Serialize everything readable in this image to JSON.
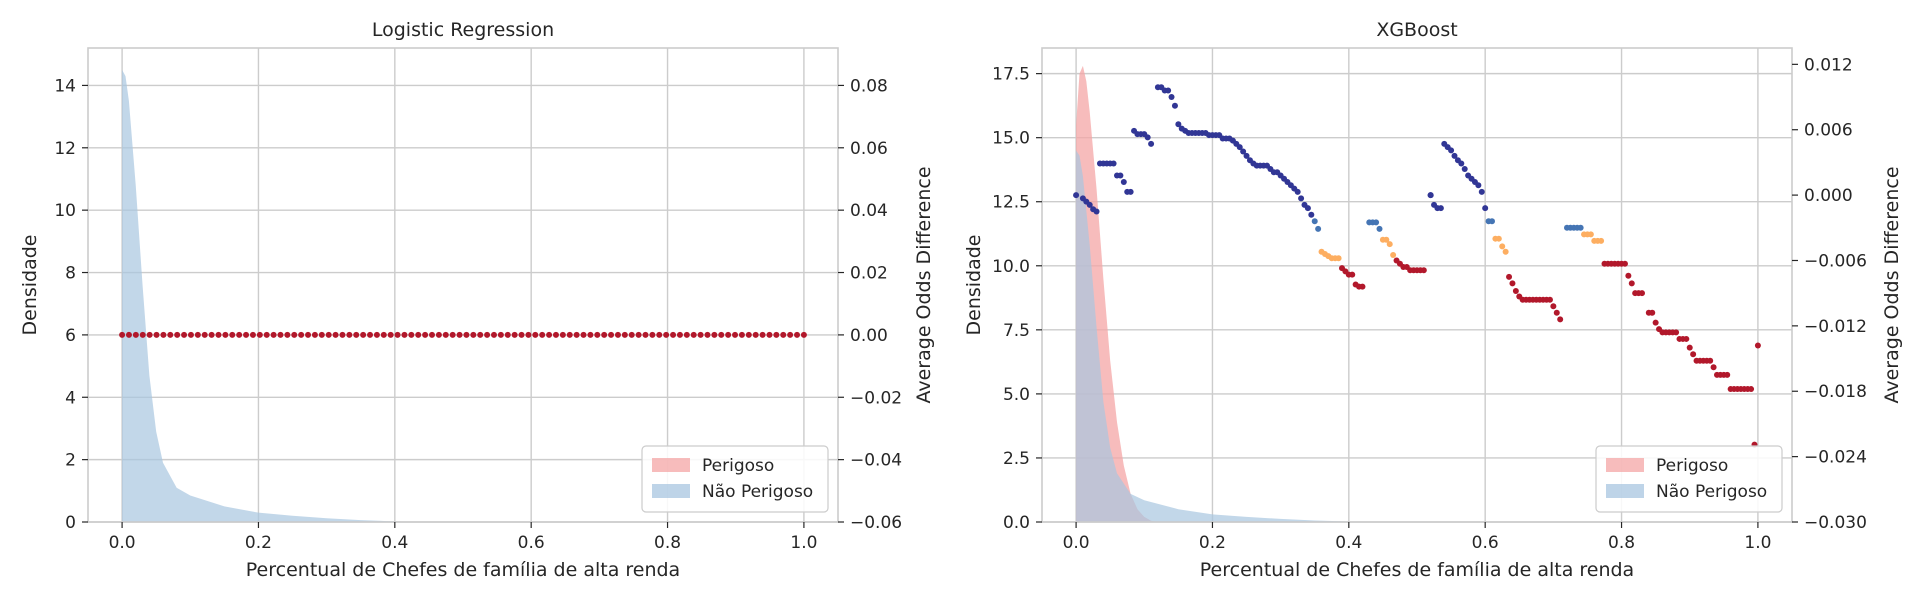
{
  "chart_data": [
    {
      "type": "area+scatter",
      "title": "Logistic Regression",
      "xlabel": "Percentual de Chefes de família de alta renda",
      "ylabel": "Densidade",
      "y2label": "Average Odds Difference",
      "xlim": [
        -0.05,
        1.05
      ],
      "ylim": [
        0,
        15.2
      ],
      "y2lim": [
        -0.06,
        0.092
      ],
      "xticks": [
        "0.0",
        "0.2",
        "0.4",
        "0.6",
        "0.8",
        "1.0"
      ],
      "yticks": [
        "0",
        "2",
        "4",
        "6",
        "8",
        "10",
        "12",
        "14"
      ],
      "y2ticks": [
        "0.08",
        "0.06",
        "0.04",
        "0.02",
        "0.00",
        "−0.02",
        "−0.04",
        "−0.06"
      ],
      "grid": true,
      "legend_position": "lower right",
      "legend": [
        "Perigoso",
        "Não Perigoso"
      ],
      "series": [
        {
          "name": "Perigoso",
          "kind": "density",
          "color": "#f4a6a6",
          "x": [],
          "y": []
        },
        {
          "name": "Não Perigoso",
          "kind": "density",
          "color": "#a8c6e0",
          "x": [
            0,
            0.005,
            0.01,
            0.02,
            0.03,
            0.04,
            0.05,
            0.06,
            0.08,
            0.1,
            0.15,
            0.2,
            0.25,
            0.3,
            0.35,
            0.4,
            0.45
          ],
          "y": [
            14.5,
            14.3,
            13.5,
            10.8,
            7.6,
            4.7,
            2.9,
            1.9,
            1.1,
            0.85,
            0.5,
            0.3,
            0.2,
            0.12,
            0.06,
            0.02,
            0
          ]
        }
      ],
      "odds_points": {
        "axis": "secondary",
        "x_start": 0.0,
        "x_end": 1.0,
        "count": 100,
        "y": [
          0.0
        ],
        "color": "#b2182b"
      }
    },
    {
      "type": "area+scatter",
      "title": "XGBoost",
      "xlabel": "Percentual de Chefes de família de alta renda",
      "ylabel": "Densidade",
      "y2label": "Average Odds Difference",
      "xlim": [
        -0.05,
        1.05
      ],
      "ylim": [
        0,
        18.5
      ],
      "y2lim": [
        -0.03,
        0.0135
      ],
      "xticks": [
        "0.0",
        "0.2",
        "0.4",
        "0.6",
        "0.8",
        "1.0"
      ],
      "yticks": [
        "0.0",
        "2.5",
        "5.0",
        "7.5",
        "10.0",
        "12.5",
        "15.0",
        "17.5"
      ],
      "y2ticks": [
        "0.012",
        "0.006",
        "0.000",
        "−0.006",
        "−0.012",
        "−0.018",
        "−0.024",
        "−0.030"
      ],
      "grid": true,
      "legend_position": "lower right",
      "legend": [
        "Perigoso",
        "Não Perigoso"
      ],
      "series": [
        {
          "name": "Perigoso",
          "kind": "density",
          "color": "#f4a6a6",
          "x": [
            0,
            0.005,
            0.01,
            0.015,
            0.02,
            0.03,
            0.04,
            0.05,
            0.06,
            0.07,
            0.08,
            0.09,
            0.1,
            0.11,
            0.12
          ],
          "y": [
            15.5,
            17.5,
            17.8,
            17.2,
            16.0,
            13.0,
            9.5,
            6.3,
            3.9,
            2.2,
            1.1,
            0.5,
            0.2,
            0.05,
            0
          ]
        },
        {
          "name": "Não Perigoso",
          "kind": "density",
          "color": "#a8c6e0",
          "x": [
            0,
            0.005,
            0.01,
            0.02,
            0.03,
            0.04,
            0.05,
            0.06,
            0.08,
            0.1,
            0.15,
            0.2,
            0.25,
            0.3,
            0.35,
            0.4,
            0.45
          ],
          "y": [
            14.5,
            14.3,
            13.5,
            10.8,
            7.6,
            4.7,
            2.9,
            1.9,
            1.1,
            0.85,
            0.5,
            0.3,
            0.2,
            0.12,
            0.06,
            0.02,
            0
          ]
        }
      ],
      "odds_points": {
        "axis": "secondary",
        "colormap": [
          "#313695",
          "#4575b4",
          "#fdae61",
          "#b2182b"
        ],
        "color_low": -0.002,
        "color_mid": -0.006,
        "points": [
          [
            0.0,
            0.0
          ],
          [
            0.01,
            -0.0003
          ],
          [
            0.015,
            -0.0006
          ],
          [
            0.02,
            -0.0009
          ],
          [
            0.025,
            -0.0013
          ],
          [
            0.03,
            -0.0015
          ],
          [
            0.035,
            0.0029
          ],
          [
            0.04,
            0.0029
          ],
          [
            0.045,
            0.0029
          ],
          [
            0.05,
            0.0029
          ],
          [
            0.055,
            0.0029
          ],
          [
            0.06,
            0.0018
          ],
          [
            0.065,
            0.0018
          ],
          [
            0.07,
            0.0012
          ],
          [
            0.075,
            0.0003
          ],
          [
            0.08,
            0.0003
          ],
          [
            0.085,
            0.0059
          ],
          [
            0.09,
            0.0056
          ],
          [
            0.095,
            0.0056
          ],
          [
            0.1,
            0.0056
          ],
          [
            0.105,
            0.0053
          ],
          [
            0.11,
            0.0047
          ],
          [
            0.12,
            0.0099
          ],
          [
            0.125,
            0.0099
          ],
          [
            0.13,
            0.0096
          ],
          [
            0.135,
            0.0096
          ],
          [
            0.14,
            0.009
          ],
          [
            0.145,
            0.0082
          ],
          [
            0.15,
            0.0065
          ],
          [
            0.155,
            0.0061
          ],
          [
            0.16,
            0.0059
          ],
          [
            0.165,
            0.0057
          ],
          [
            0.17,
            0.0057
          ],
          [
            0.175,
            0.0057
          ],
          [
            0.18,
            0.0057
          ],
          [
            0.185,
            0.0057
          ],
          [
            0.19,
            0.0057
          ],
          [
            0.195,
            0.0055
          ],
          [
            0.2,
            0.0055
          ],
          [
            0.205,
            0.0055
          ],
          [
            0.21,
            0.0055
          ],
          [
            0.215,
            0.0052
          ],
          [
            0.22,
            0.0052
          ],
          [
            0.225,
            0.0052
          ],
          [
            0.23,
            0.005
          ],
          [
            0.235,
            0.0047
          ],
          [
            0.24,
            0.0044
          ],
          [
            0.245,
            0.004
          ],
          [
            0.25,
            0.0036
          ],
          [
            0.255,
            0.0032
          ],
          [
            0.26,
            0.0029
          ],
          [
            0.265,
            0.0027
          ],
          [
            0.27,
            0.0027
          ],
          [
            0.275,
            0.0027
          ],
          [
            0.28,
            0.0027
          ],
          [
            0.285,
            0.0024
          ],
          [
            0.29,
            0.0021
          ],
          [
            0.295,
            0.0021
          ],
          [
            0.3,
            0.0018
          ],
          [
            0.305,
            0.0015
          ],
          [
            0.31,
            0.0012
          ],
          [
            0.315,
            0.0009
          ],
          [
            0.32,
            0.0006
          ],
          [
            0.325,
            0.0003
          ],
          [
            0.33,
            -0.0003
          ],
          [
            0.335,
            -0.0009
          ],
          [
            0.34,
            -0.0012
          ],
          [
            0.345,
            -0.0018
          ],
          [
            0.35,
            -0.0024
          ],
          [
            0.355,
            -0.0031
          ],
          [
            0.36,
            -0.0052
          ],
          [
            0.365,
            -0.0054
          ],
          [
            0.37,
            -0.0056
          ],
          [
            0.375,
            -0.0058
          ],
          [
            0.38,
            -0.0058
          ],
          [
            0.385,
            -0.0058
          ],
          [
            0.39,
            -0.0067
          ],
          [
            0.395,
            -0.007
          ],
          [
            0.4,
            -0.0073
          ],
          [
            0.405,
            -0.0073
          ],
          [
            0.41,
            -0.0082
          ],
          [
            0.415,
            -0.0084
          ],
          [
            0.42,
            -0.0084
          ],
          [
            0.43,
            -0.0025
          ],
          [
            0.435,
            -0.0025
          ],
          [
            0.44,
            -0.0025
          ],
          [
            0.445,
            -0.0031
          ],
          [
            0.45,
            -0.0041
          ],
          [
            0.455,
            -0.0041
          ],
          [
            0.46,
            -0.0045
          ],
          [
            0.465,
            -0.0055
          ],
          [
            0.47,
            -0.006
          ],
          [
            0.475,
            -0.0063
          ],
          [
            0.48,
            -0.0066
          ],
          [
            0.485,
            -0.0066
          ],
          [
            0.49,
            -0.0069
          ],
          [
            0.495,
            -0.0069
          ],
          [
            0.5,
            -0.0069
          ],
          [
            0.505,
            -0.0069
          ],
          [
            0.51,
            -0.0069
          ],
          [
            0.52,
            0.0
          ]
        ],
        "points2": [
          [
            0.52,
            0.0
          ],
          [
            0.525,
            -0.0009
          ],
          [
            0.53,
            -0.0012
          ],
          [
            0.535,
            -0.0012
          ],
          [
            0.54,
            0.0047
          ],
          [
            0.545,
            0.0044
          ],
          [
            0.55,
            0.0041
          ],
          [
            0.555,
            0.0036
          ],
          [
            0.56,
            0.0032
          ],
          [
            0.565,
            0.0029
          ],
          [
            0.57,
            0.0024
          ],
          [
            0.575,
            0.0018
          ],
          [
            0.58,
            0.0015
          ],
          [
            0.585,
            0.0012
          ],
          [
            0.59,
            0.0009
          ],
          [
            0.595,
            0.0003
          ],
          [
            0.6,
            -0.0012
          ],
          [
            0.605,
            -0.0024
          ],
          [
            0.61,
            -0.0024
          ],
          [
            0.615,
            -0.004
          ],
          [
            0.62,
            -0.004
          ],
          [
            0.625,
            -0.0047
          ],
          [
            0.63,
            -0.0052
          ],
          [
            0.635,
            -0.0075
          ],
          [
            0.64,
            -0.0081
          ],
          [
            0.645,
            -0.0088
          ],
          [
            0.65,
            -0.0093
          ],
          [
            0.655,
            -0.0096
          ],
          [
            0.66,
            -0.0096
          ],
          [
            0.665,
            -0.0096
          ],
          [
            0.67,
            -0.0096
          ],
          [
            0.675,
            -0.0096
          ],
          [
            0.68,
            -0.0096
          ],
          [
            0.685,
            -0.0096
          ],
          [
            0.69,
            -0.0096
          ],
          [
            0.695,
            -0.0096
          ],
          [
            0.7,
            -0.0102
          ],
          [
            0.705,
            -0.0108
          ],
          [
            0.71,
            -0.0114
          ],
          [
            0.72,
            -0.003
          ],
          [
            0.725,
            -0.003
          ],
          [
            0.73,
            -0.003
          ],
          [
            0.735,
            -0.003
          ],
          [
            0.74,
            -0.003
          ],
          [
            0.745,
            -0.0036
          ],
          [
            0.75,
            -0.0036
          ],
          [
            0.755,
            -0.0036
          ],
          [
            0.76,
            -0.0042
          ],
          [
            0.765,
            -0.0042
          ],
          [
            0.77,
            -0.0042
          ],
          [
            0.775,
            -0.0063
          ],
          [
            0.78,
            -0.0063
          ],
          [
            0.785,
            -0.0063
          ],
          [
            0.79,
            -0.0063
          ],
          [
            0.795,
            -0.0063
          ],
          [
            0.8,
            -0.0063
          ],
          [
            0.805,
            -0.0063
          ],
          [
            0.81,
            -0.0074
          ],
          [
            0.815,
            -0.0081
          ],
          [
            0.82,
            -0.009
          ],
          [
            0.825,
            -0.009
          ],
          [
            0.83,
            -0.009
          ],
          [
            0.84,
            -0.0108
          ],
          [
            0.845,
            -0.0108
          ],
          [
            0.85,
            -0.0117
          ],
          [
            0.855,
            -0.0123
          ],
          [
            0.86,
            -0.0126
          ],
          [
            0.865,
            -0.0126
          ],
          [
            0.87,
            -0.0126
          ],
          [
            0.875,
            -0.0126
          ],
          [
            0.88,
            -0.0126
          ],
          [
            0.885,
            -0.0132
          ],
          [
            0.89,
            -0.0132
          ],
          [
            0.895,
            -0.0132
          ],
          [
            0.9,
            -0.014
          ],
          [
            0.905,
            -0.0146
          ],
          [
            0.91,
            -0.0152
          ],
          [
            0.915,
            -0.0152
          ],
          [
            0.92,
            -0.0152
          ],
          [
            0.925,
            -0.0152
          ],
          [
            0.93,
            -0.0152
          ],
          [
            0.935,
            -0.0158
          ],
          [
            0.94,
            -0.0165
          ],
          [
            0.945,
            -0.0165
          ],
          [
            0.95,
            -0.0165
          ],
          [
            0.955,
            -0.0165
          ],
          [
            0.96,
            -0.0178
          ],
          [
            0.965,
            -0.0178
          ],
          [
            0.97,
            -0.0178
          ],
          [
            0.975,
            -0.0178
          ],
          [
            0.98,
            -0.0178
          ],
          [
            0.985,
            -0.0178
          ],
          [
            0.99,
            -0.0178
          ],
          [
            0.995,
            -0.0229
          ],
          [
            1.0,
            -0.0138
          ]
        ]
      }
    }
  ]
}
